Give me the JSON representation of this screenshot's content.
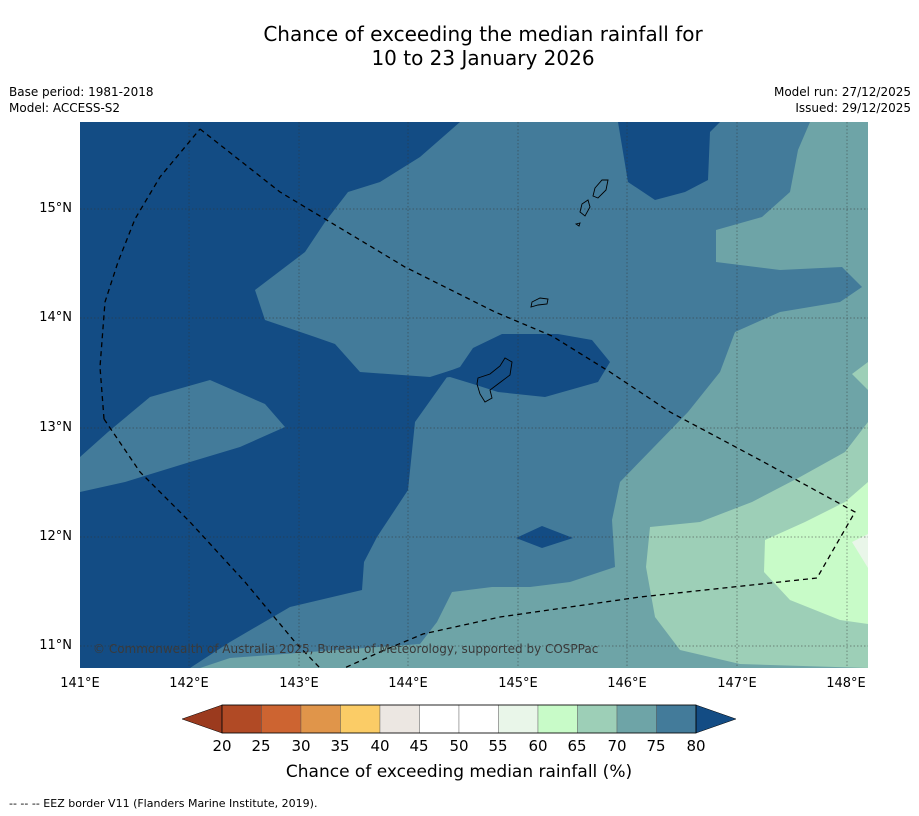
{
  "title": {
    "line1": "Chance of exceeding the median rainfall for",
    "line2": "10 to 23 January 2026"
  },
  "meta_left": {
    "base_period": "Base period: 1981-2018",
    "model": "Model: ACCESS-S2"
  },
  "meta_right": {
    "model_run": "Model run: 27/12/2025",
    "issued": "Issued: 29/12/2025"
  },
  "lon_labels": [
    "141°E",
    "142°E",
    "143°E",
    "144°E",
    "145°E",
    "146°E",
    "147°E",
    "148°E"
  ],
  "lat_labels": [
    "15°N",
    "14°N",
    "13°N",
    "12°N",
    "11°N"
  ],
  "copyright": "© Commonwealth of Australia 2025, Bureau of Meteorology, supported by COSPPac",
  "colorbar": {
    "ticks": [
      "20",
      "25",
      "30",
      "35",
      "40",
      "45",
      "50",
      "55",
      "60",
      "65",
      "70",
      "75",
      "80"
    ],
    "label": "Chance of exceeding median rainfall (%)",
    "under_color": "#9b3a1e",
    "over_color": "#134c84",
    "colors": [
      "#b14a25",
      "#cd6431",
      "#e0954a",
      "#fbcc66",
      "#ece7e2",
      "#ffffff",
      "#ffffff",
      "#e9f6e9",
      "#c8fbc8",
      "#9dcfb7",
      "#6ea4a7",
      "#437b9a"
    ]
  },
  "map_colors": {
    "band_80plus": "#134c84",
    "band_75_80": "#437b9a",
    "band_70_75": "#6ea4a7",
    "band_65_70": "#9dcfb7",
    "band_60_65": "#c8fbc8",
    "band_55_60": "#e9f6e9"
  },
  "footnote": "-- -- -- EEZ border V11 (Flanders Marine Institute, 2019)."
}
